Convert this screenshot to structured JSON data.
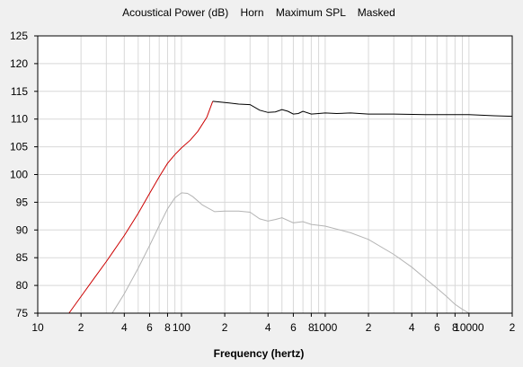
{
  "chart_data": {
    "type": "line",
    "title": "Acoustical Power (dB)    Horn    Maximum SPL    Masked",
    "xlabel": "Frequency (hertz)",
    "ylabel": "",
    "x_scale": "log",
    "xlim": [
      10,
      20000
    ],
    "ylim": [
      75,
      125
    ],
    "grid": true,
    "y_ticks": [
      75,
      80,
      85,
      90,
      95,
      100,
      105,
      110,
      115,
      120,
      125
    ],
    "x_ticks": [
      {
        "value": 10,
        "label": "10"
      },
      {
        "value": 20,
        "label": "2"
      },
      {
        "value": 40,
        "label": "4"
      },
      {
        "value": 60,
        "label": "6"
      },
      {
        "value": 80,
        "label": "8"
      },
      {
        "value": 100,
        "label": "100"
      },
      {
        "value": 200,
        "label": "2"
      },
      {
        "value": 400,
        "label": "4"
      },
      {
        "value": 600,
        "label": "6"
      },
      {
        "value": 800,
        "label": "8"
      },
      {
        "value": 1000,
        "label": "1000"
      },
      {
        "value": 2000,
        "label": "2"
      },
      {
        "value": 4000,
        "label": "4"
      },
      {
        "value": 6000,
        "label": "6"
      },
      {
        "value": 8000,
        "label": "8"
      },
      {
        "value": 10000,
        "label": "10000"
      },
      {
        "value": 20000,
        "label": "2"
      }
    ],
    "colors": {
      "background": "#f0f0f0",
      "plot_background": "#ffffff",
      "grid": "#d8d8d8",
      "axis": "#000000"
    },
    "series": [
      {
        "color": "#cc0000",
        "x": [
          16.5,
          20,
          25,
          30,
          40,
          50,
          60,
          70,
          80,
          90,
          100,
          115,
          130,
          150,
          165
        ],
        "y": [
          75,
          78,
          81.5,
          84.3,
          89,
          93,
          96.6,
          99.6,
          102,
          103.6,
          104.8,
          106.2,
          107.8,
          110.3,
          113.2
        ]
      },
      {
        "color": "#000000",
        "x": [
          165,
          200,
          250,
          300,
          350,
          400,
          450,
          500,
          550,
          600,
          650,
          700,
          800,
          900,
          1000,
          1200,
          1500,
          2000,
          3000,
          5000,
          8000,
          10000,
          15000,
          20000
        ],
        "y": [
          113.2,
          113.0,
          112.7,
          112.6,
          111.6,
          111.2,
          111.3,
          111.7,
          111.4,
          110.9,
          111.0,
          111.4,
          110.9,
          111.0,
          111.1,
          111.0,
          111.1,
          110.9,
          110.9,
          110.8,
          110.8,
          110.8,
          110.6,
          110.5
        ]
      },
      {
        "color": "#b4b4b4",
        "x": [
          33,
          40,
          50,
          60,
          70,
          80,
          90,
          100,
          110,
          120,
          140,
          170,
          200,
          250,
          300,
          350,
          400,
          450,
          500,
          600,
          700,
          800,
          1000,
          1500,
          2000,
          3000,
          4000,
          5000,
          6000,
          7000,
          8000,
          9000,
          10000
        ],
        "y": [
          75,
          78.5,
          83.1,
          87.2,
          90.8,
          93.8,
          95.8,
          96.7,
          96.6,
          96.0,
          94.5,
          93.3,
          93.4,
          93.4,
          93.2,
          92.0,
          91.6,
          91.9,
          92.2,
          91.3,
          91.5,
          91.0,
          90.7,
          89.5,
          88.3,
          85.6,
          83.3,
          81.2,
          79.5,
          78.0,
          76.6,
          75.7,
          75.0
        ]
      }
    ]
  }
}
